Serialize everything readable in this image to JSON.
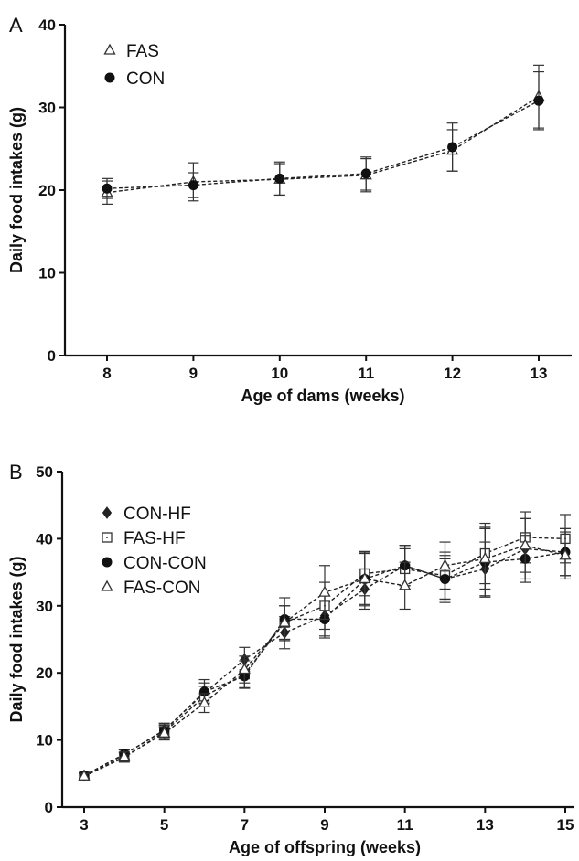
{
  "chart_data": [
    {
      "panel_label": "A",
      "type": "line",
      "xlabel": "Age of dams (weeks)",
      "ylabel": "Daily food intakes (g)",
      "xlim": [
        8,
        13
      ],
      "ylim": [
        0,
        40
      ],
      "x_ticks": [
        8,
        9,
        10,
        11,
        12,
        13
      ],
      "y_ticks": [
        0,
        10,
        20,
        30,
        40
      ],
      "legend_position": "top-left",
      "grid": false,
      "series": [
        {
          "name": "FAS",
          "marker": "open-triangle",
          "x": [
            8,
            9,
            10,
            11,
            12,
            13
          ],
          "values": [
            19.7,
            21.0,
            21.3,
            21.8,
            24.8,
            31.3
          ],
          "errors": [
            1.4,
            2.3,
            1.9,
            2.0,
            2.5,
            3.8
          ]
        },
        {
          "name": "CON",
          "marker": "filled-circle",
          "x": [
            8,
            9,
            10,
            11,
            12,
            13
          ],
          "values": [
            20.2,
            20.6,
            21.4,
            22.0,
            25.2,
            30.8
          ],
          "errors": [
            1.2,
            1.5,
            2.0,
            2.0,
            2.9,
            3.5
          ]
        }
      ]
    },
    {
      "panel_label": "B",
      "type": "line",
      "xlabel": "Age of offspring (weeks)",
      "ylabel": "Daily food intakes (g)",
      "xlim": [
        3,
        15
      ],
      "ylim": [
        0,
        50
      ],
      "x_ticks": [
        3,
        5,
        7,
        9,
        11,
        13,
        15
      ],
      "y_ticks": [
        0,
        10,
        20,
        30,
        40,
        50
      ],
      "legend_position": "top-left",
      "grid": false,
      "series": [
        {
          "name": "CON-HF",
          "marker": "filled-diamond",
          "x": [
            3,
            4,
            5,
            6,
            7,
            8,
            9,
            10,
            11,
            12,
            13,
            14,
            15
          ],
          "values": [
            4.7,
            7.8,
            11.5,
            17.0,
            22.0,
            26.0,
            28.5,
            32.5,
            36.0,
            34.0,
            35.5,
            38.5,
            38.0
          ],
          "errors": [
            0.4,
            0.7,
            1.0,
            1.5,
            1.8,
            2.4,
            3.0,
            3.0,
            3.0,
            3.0,
            4.0,
            4.5,
            3.5
          ]
        },
        {
          "name": "FAS-HF",
          "marker": "open-square",
          "x": [
            3,
            4,
            5,
            6,
            7,
            8,
            9,
            10,
            11,
            12,
            13,
            14,
            15
          ],
          "values": [
            4.6,
            7.4,
            11.2,
            16.5,
            19.8,
            27.5,
            30.0,
            34.8,
            35.5,
            34.5,
            37.8,
            40.2,
            40.0
          ],
          "errors": [
            0.4,
            0.7,
            1.0,
            1.5,
            2.0,
            2.5,
            3.5,
            3.3,
            3.0,
            3.5,
            4.5,
            3.8,
            3.6
          ]
        },
        {
          "name": "CON-CON",
          "marker": "filled-circle",
          "x": [
            3,
            4,
            5,
            6,
            7,
            8,
            9,
            10,
            11,
            12,
            13,
            14,
            15
          ],
          "values": [
            4.7,
            7.9,
            11.4,
            17.2,
            19.5,
            28.0,
            28.0,
            34.0,
            36.0,
            34.0,
            36.5,
            37.0,
            38.0
          ],
          "errors": [
            0.4,
            0.7,
            1.0,
            1.8,
            1.8,
            3.2,
            2.8,
            3.8,
            3.0,
            3.5,
            5.2,
            3.5,
            3.5
          ]
        },
        {
          "name": "FAS-CON",
          "marker": "open-triangle",
          "x": [
            3,
            4,
            5,
            6,
            7,
            8,
            9,
            10,
            11,
            12,
            13,
            14,
            15
          ],
          "values": [
            4.6,
            7.5,
            11.0,
            15.5,
            20.5,
            27.5,
            32.0,
            34.0,
            33.0,
            36.0,
            37.0,
            39.0,
            37.5
          ],
          "errors": [
            0.4,
            0.7,
            1.0,
            1.4,
            2.0,
            2.5,
            4.0,
            4.0,
            3.5,
            3.5,
            4.5,
            4.0,
            3.5
          ]
        }
      ]
    }
  ]
}
